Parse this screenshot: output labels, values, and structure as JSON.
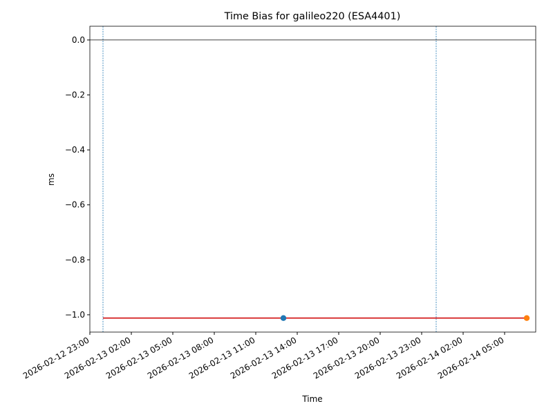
{
  "chart_data": {
    "type": "line",
    "title": "Time Bias for galileo220 (ESA4401)",
    "xlabel": "Time",
    "ylabel": "ms",
    "xlim": [
      "2026-02-12 23:00",
      "2026-02-14 07:15"
    ],
    "xticks": [
      "2026-02-12 23:00",
      "2026-02-13 02:00",
      "2026-02-13 05:00",
      "2026-02-13 08:00",
      "2026-02-13 11:00",
      "2026-02-13 14:00",
      "2026-02-13 17:00",
      "2026-02-13 20:00",
      "2026-02-13 23:00",
      "2026-02-14 02:00",
      "2026-02-14 05:00"
    ],
    "ylim": [
      -1.063,
      0.05
    ],
    "yticks": [
      {
        "value": 0,
        "label": "0.0"
      },
      {
        "value": -0.2,
        "label": "−0.2"
      },
      {
        "value": -0.4,
        "label": "−0.4"
      },
      {
        "value": -0.6,
        "label": "−0.6"
      },
      {
        "value": -0.8,
        "label": "−0.8"
      },
      {
        "value": -1,
        "label": "−1.0"
      }
    ],
    "hlines": [
      {
        "value": 0,
        "color": "#000000"
      }
    ],
    "vlines": [
      {
        "x": "2026-02-12 23:57",
        "color": "#1f77b4"
      },
      {
        "x": "2026-02-14 00:03",
        "color": "#1f77b4"
      }
    ],
    "series": [
      {
        "kind": "line",
        "color": "#d62728",
        "x": [
          "2026-02-12 23:57",
          "2026-02-14 06:36"
        ],
        "values": [
          -1.012,
          -1.012
        ]
      },
      {
        "kind": "point",
        "color": "#1f77b4",
        "x": [
          "2026-02-13 13:00"
        ],
        "values": [
          -1.012
        ]
      },
      {
        "kind": "point",
        "color": "#ff7f0e",
        "x": [
          "2026-02-14 06:36"
        ],
        "values": [
          -1.012
        ]
      }
    ]
  }
}
